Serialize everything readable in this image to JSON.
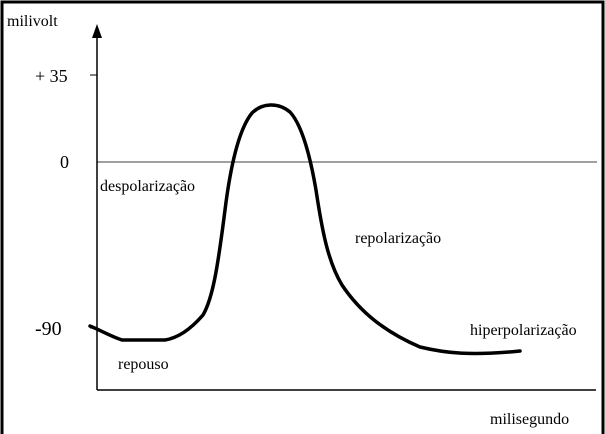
{
  "axis": {
    "y_label": "milivolt",
    "x_label": "milisegundo",
    "ticks": [
      "+ 35",
      "0",
      "-90"
    ]
  },
  "annotations": [
    "despolarização",
    "repolarização",
    "hiperpolarização",
    "repouso"
  ]
}
